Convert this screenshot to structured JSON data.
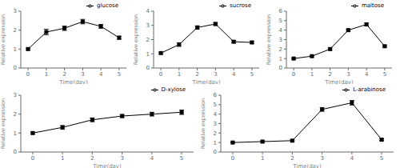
{
  "chart_data": [
    {
      "type": "line",
      "xlabel": "Time(day)",
      "ylabel": "Relative expression",
      "x": [
        0,
        1,
        2,
        3,
        4,
        5
      ],
      "xlim": [
        -0.4,
        5.4
      ],
      "xticks": [
        0,
        1,
        2,
        3,
        4,
        5
      ],
      "ylim": [
        0,
        3
      ],
      "yticks": [
        0,
        1,
        2,
        3
      ],
      "legend": "upper right",
      "series": [
        {
          "name": "glucose",
          "color": "black",
          "marker": "square",
          "values": [
            1.0,
            1.9,
            2.1,
            2.45,
            2.2,
            1.6
          ],
          "yerr": [
            0.05,
            0.15,
            0.12,
            0.12,
            0.1,
            0.08
          ]
        }
      ]
    },
    {
      "type": "line",
      "xlabel": "Time(day)",
      "ylabel": "Relative expression",
      "x": [
        0,
        1,
        2,
        3,
        4,
        5
      ],
      "xlim": [
        -0.4,
        5.4
      ],
      "xticks": [
        0,
        1,
        2,
        3,
        4,
        5
      ],
      "ylim": [
        0,
        4
      ],
      "yticks": [
        0,
        1,
        2,
        3,
        4
      ],
      "legend": "upper right",
      "series": [
        {
          "name": "sucrose",
          "color": "black",
          "marker": "square",
          "values": [
            1.05,
            1.65,
            2.85,
            3.1,
            1.85,
            1.8
          ],
          "yerr": [
            0.06,
            0.12,
            0.12,
            0.1,
            0.08,
            0.07
          ]
        }
      ]
    },
    {
      "type": "line",
      "xlabel": "Time(day)",
      "ylabel": "Relative expression",
      "x": [
        0,
        1,
        2,
        3,
        4,
        5
      ],
      "xlim": [
        -0.4,
        5.4
      ],
      "xticks": [
        0,
        1,
        2,
        3,
        4,
        5
      ],
      "ylim": [
        0,
        6
      ],
      "yticks": [
        0,
        1,
        2,
        3,
        4,
        5,
        6
      ],
      "legend": "upper right",
      "series": [
        {
          "name": "maltose",
          "color": "black",
          "marker": "square",
          "values": [
            1.0,
            1.25,
            2.0,
            4.0,
            4.6,
            2.3
          ],
          "yerr": [
            0.06,
            0.08,
            0.12,
            0.1,
            0.15,
            0.1
          ]
        }
      ]
    },
    {
      "type": "line",
      "xlabel": "Time(day)",
      "ylabel": "Relative expression",
      "x": [
        0,
        1,
        2,
        3,
        4,
        5
      ],
      "xlim": [
        -0.4,
        5.4
      ],
      "xticks": [
        0,
        1,
        2,
        3,
        4,
        5
      ],
      "ylim": [
        0,
        3
      ],
      "yticks": [
        0,
        1,
        2,
        3
      ],
      "legend": "upper right",
      "series": [
        {
          "name": "D-xylose",
          "color": "black",
          "marker": "square",
          "values": [
            1.0,
            1.3,
            1.7,
            1.9,
            2.0,
            2.1
          ],
          "yerr": [
            0.05,
            0.1,
            0.1,
            0.08,
            0.1,
            0.12
          ]
        }
      ]
    },
    {
      "type": "line",
      "xlabel": "Time(day)",
      "ylabel": "Relative expression",
      "x": [
        0,
        1,
        2,
        3,
        4,
        5
      ],
      "xlim": [
        -0.4,
        5.4
      ],
      "xticks": [
        0,
        1,
        2,
        3,
        4,
        5
      ],
      "ylim": [
        0,
        6
      ],
      "yticks": [
        0,
        1,
        2,
        3,
        4,
        5,
        6
      ],
      "legend": "upper right",
      "series": [
        {
          "name": "L-arabinose",
          "color": "black",
          "marker": "square",
          "values": [
            1.0,
            1.1,
            1.2,
            4.5,
            5.2,
            1.3
          ],
          "yerr": [
            0.05,
            0.08,
            0.1,
            0.2,
            0.25,
            0.1
          ]
        }
      ]
    }
  ]
}
